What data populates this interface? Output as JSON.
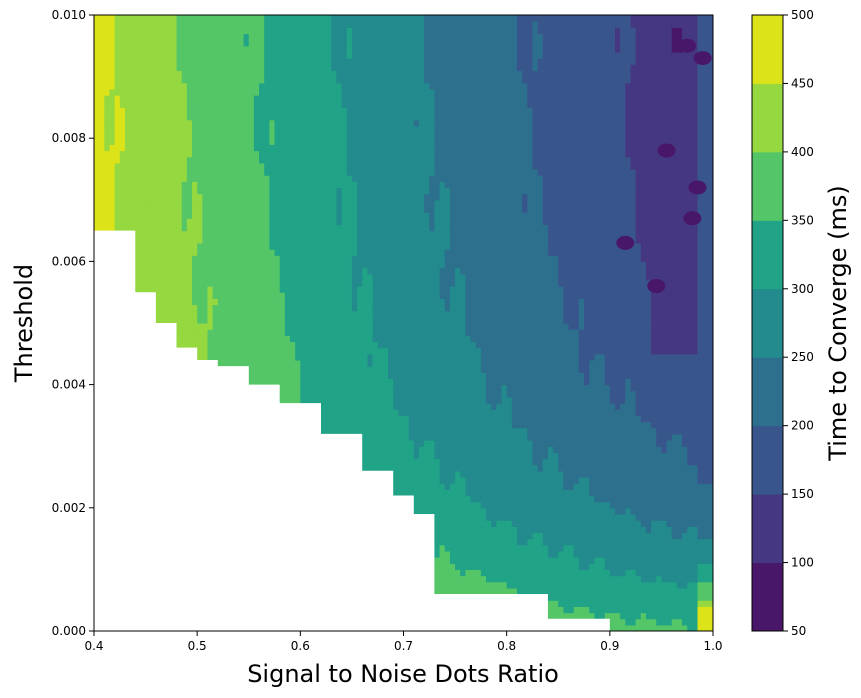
{
  "chart_data": {
    "type": "contourf",
    "xlabel": "Signal to Noise Dots Ratio",
    "ylabel": "Threshold",
    "colorbar_label": "Time to Converge (ms)",
    "xlim": [
      0.4,
      1.0
    ],
    "ylim": [
      0.0,
      0.01
    ],
    "xticks": [
      "0.4",
      "0.5",
      "0.6",
      "0.7",
      "0.8",
      "0.9",
      "1.0"
    ],
    "yticks": [
      "0.000",
      "0.002",
      "0.004",
      "0.006",
      "0.008",
      "0.010"
    ],
    "levels": [
      50,
      100,
      150,
      200,
      250,
      300,
      350,
      400,
      450,
      500
    ],
    "level_labels": [
      "50",
      "100",
      "150",
      "200",
      "250",
      "300",
      "350",
      "400",
      "450",
      "500"
    ],
    "level_colors": [
      "#481769",
      "#453781",
      "#39568c",
      "#2d708e",
      "#238a8d",
      "#20a386",
      "#55c667",
      "#95d840",
      "#dce319"
    ],
    "no_data_boundary": [
      [
        0.4,
        0.0065
      ],
      [
        0.42,
        0.0065
      ],
      [
        0.44,
        0.0055
      ],
      [
        0.46,
        0.005
      ],
      [
        0.48,
        0.0046
      ],
      [
        0.5,
        0.0044
      ],
      [
        0.52,
        0.0043
      ],
      [
        0.55,
        0.004
      ],
      [
        0.58,
        0.0037
      ],
      [
        0.62,
        0.0032
      ],
      [
        0.66,
        0.0026
      ],
      [
        0.69,
        0.0022
      ],
      [
        0.71,
        0.0019
      ],
      [
        0.73,
        0.0015
      ],
      [
        0.73,
        0.0006
      ],
      [
        0.78,
        0.0006
      ],
      [
        0.84,
        0.0002
      ],
      [
        0.9,
        0.0
      ]
    ],
    "dark_spots": [
      [
        0.975,
        0.0095
      ],
      [
        0.99,
        0.0093
      ],
      [
        0.955,
        0.0078
      ],
      [
        0.985,
        0.0072
      ],
      [
        0.98,
        0.0067
      ],
      [
        0.915,
        0.0063
      ],
      [
        0.945,
        0.0056
      ]
    ]
  }
}
